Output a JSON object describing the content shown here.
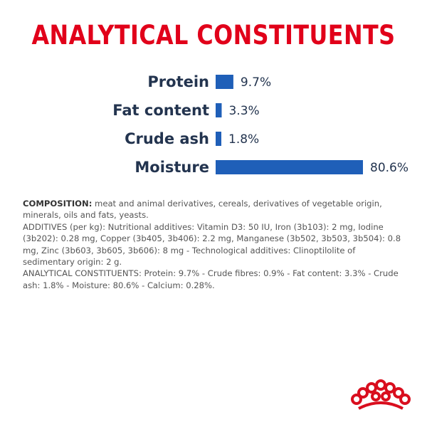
{
  "colors": {
    "title": "#e1001a",
    "bar": "#1f5fb8",
    "label": "#23344f",
    "logo": "#d90e1e"
  },
  "chart_data": {
    "type": "bar",
    "orientation": "horizontal",
    "title": "ANALYTICAL CONSTITUENTS",
    "categories": [
      "Protein",
      "Fat content",
      "Crude ash",
      "Moisture"
    ],
    "values": [
      9.7,
      3.3,
      1.8,
      80.6
    ],
    "value_labels": [
      "9.7%",
      "3.3%",
      "1.8%",
      "80.6%"
    ],
    "xlim": [
      0,
      80.6
    ],
    "grid": false
  },
  "composition": {
    "heading": "COMPOSITION:",
    "text": " meat and animal derivatives, cereals, derivatives of vegetable origin, minerals, oils and fats, yeasts.",
    "additives": "ADDITIVES (per kg): Nutritional additives: Vitamin D3: 50 IU, Iron (3b103): 2 mg, Iodine (3b202): 0.28 mg, Copper (3b405, 3b406): 2.2 mg, Manganese (3b502, 3b503, 3b504): 0.8 mg, Zinc (3b603, 3b605, 3b606): 8 mg - Technological additives: Clinoptilolite of sedimentary origin: 2 g.",
    "constituents": "ANALYTICAL CONSTITUENTS: Protein: 9.7% - Crude fibres: 0.9% - Fat content: 3.3% - Crude ash: 1.8% - Moisture: 80.6% - Calcium: 0.28%."
  },
  "logo": {
    "icon": "royal-crown-icon"
  }
}
